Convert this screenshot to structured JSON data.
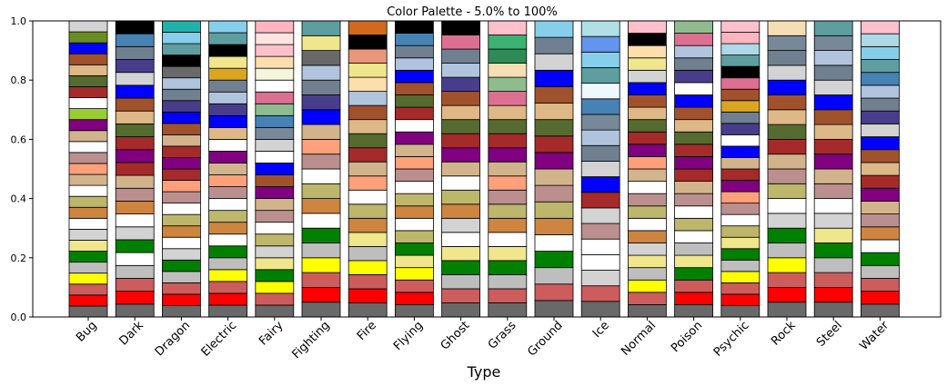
{
  "chart_data": {
    "type": "bar",
    "stacked": true,
    "title": "Color Palette - 5.0% to 100%",
    "xlabel": "Type",
    "ylabel": "",
    "ylim": [
      0,
      1.0
    ],
    "yticks": [
      "0.0",
      "0.2",
      "0.4",
      "0.6",
      "0.8",
      "1.0"
    ],
    "grid": false,
    "legend": "none",
    "categories": [
      "Bug",
      "Dark",
      "Dragon",
      "Electric",
      "Fairy",
      "Fighting",
      "Fire",
      "Flying",
      "Ghost",
      "Grass",
      "Ground",
      "Ice",
      "Normal",
      "Poison",
      "Psychic",
      "Rock",
      "Steel",
      "Water"
    ],
    "stacks": [
      [
        "#696969",
        "#ff0000",
        "#cd5c5c",
        "#ffff00",
        "#bebebe",
        "#008000",
        "#f0e68c",
        "#d3d3d3",
        "#ffffff",
        "#cd853f",
        "#bdb76b",
        "#ffffff",
        "#d2b48c",
        "#ffa07a",
        "#bc8f8f",
        "#ffffff",
        "#d2b48c",
        "#800080",
        "#9acd32",
        "#ffffff",
        "#a52a2a",
        "#556b2f",
        "#deb887",
        "#a0522d",
        "#0000ff",
        "#6b8e23",
        "#d3d3d3"
      ],
      [
        "#696969",
        "#ff0000",
        "#cd5c5c",
        "#bebebe",
        "#ffffff",
        "#008000",
        "#d3d3d3",
        "#ffffff",
        "#cd853f",
        "#bc8f8f",
        "#d2b48c",
        "#a52a2a",
        "#800080",
        "#a52a2a",
        "#556b2f",
        "#deb887",
        "#a0522d",
        "#0000ff",
        "#d3d3d3",
        "#483d8b",
        "#708090",
        "#4682b4",
        "#000000"
      ],
      [
        "#696969",
        "#ff0000",
        "#cd5c5c",
        "#bebebe",
        "#008000",
        "#d3d3d3",
        "#ffffff",
        "#cd853f",
        "#bdb76b",
        "#ffffff",
        "#bc8f8f",
        "#ffa07a",
        "#a52a2a",
        "#800080",
        "#a52a2a",
        "#d2b48c",
        "#a0522d",
        "#0000ff",
        "#483d8b",
        "#708090",
        "#b0c4de",
        "#696969",
        "#000000",
        "#5f9ea0",
        "#87ceeb",
        "#20b2aa"
      ],
      [
        "#696969",
        "#ff0000",
        "#cd5c5c",
        "#ffff00",
        "#bebebe",
        "#008000",
        "#ffffff",
        "#cd853f",
        "#bdb76b",
        "#ffffff",
        "#bc8f8f",
        "#ffa07a",
        "#d2b48c",
        "#800080",
        "#ffffff",
        "#deb887",
        "#0000ff",
        "#483d8b",
        "#b0c4de",
        "#708090",
        "#daa520",
        "#f0e68c",
        "#000000",
        "#5f9ea0",
        "#87ceeb"
      ],
      [
        "#696969",
        "#cd5c5c",
        "#ffff00",
        "#008000",
        "#f0e68c",
        "#d3d3d3",
        "#bdb76b",
        "#ffffff",
        "#bc8f8f",
        "#d2b48c",
        "#800080",
        "#a0522d",
        "#0000ff",
        "#ffffff",
        "#d3d3d3",
        "#778899",
        "#4682b4",
        "#8fbc8f",
        "#db7093",
        "#ffffff",
        "#f5f5dc",
        "#ffdead",
        "#ffc0cb",
        "#ffe4e1",
        "#ffb6c1"
      ],
      [
        "#696969",
        "#ff0000",
        "#cd5c5c",
        "#ffff00",
        "#bebebe",
        "#008000",
        "#ffffff",
        "#cd853f",
        "#bdb76b",
        "#ffffff",
        "#bc8f8f",
        "#ffa07a",
        "#d2b48c",
        "#0000ff",
        "#483d8b",
        "#708090",
        "#b0c4de",
        "#696969",
        "#f0e68c",
        "#5f9ea0"
      ],
      [
        "#696969",
        "#ff0000",
        "#cd5c5c",
        "#ffff00",
        "#bebebe",
        "#f0e68c",
        "#cd853f",
        "#bdb76b",
        "#ffffff",
        "#ffa07a",
        "#d2b48c",
        "#a52a2a",
        "#556b2f",
        "#deb887",
        "#a0522d",
        "#b0c4de",
        "#ffdead",
        "#f0e68c",
        "#e9967a",
        "#000000",
        "#d2691e"
      ],
      [
        "#696969",
        "#ff0000",
        "#cd5c5c",
        "#ffff00",
        "#f0e68c",
        "#008000",
        "#bdb76b",
        "#ffffff",
        "#cd853f",
        "#bdb76b",
        "#ffffff",
        "#bc8f8f",
        "#ffa07a",
        "#d2b48c",
        "#800080",
        "#ffffff",
        "#a52a2a",
        "#556b2f",
        "#a0522d",
        "#0000ff",
        "#b0c4de",
        "#708090",
        "#4682b4",
        "#000000"
      ],
      [
        "#696969",
        "#cd5c5c",
        "#bebebe",
        "#008000",
        "#f0e68c",
        "#ffffff",
        "#d3d3d3",
        "#cd853f",
        "#bdb76b",
        "#ffffff",
        "#d2b48c",
        "#800080",
        "#a52a2a",
        "#556b2f",
        "#deb887",
        "#a0522d",
        "#483d8b",
        "#b0c4de",
        "#708090",
        "#db7093",
        "#000000"
      ],
      [
        "#696969",
        "#cd5c5c",
        "#bebebe",
        "#008000",
        "#f0e68c",
        "#ffffff",
        "#cd853f",
        "#bdb76b",
        "#bc8f8f",
        "#ffa07a",
        "#d2b48c",
        "#800080",
        "#a52a2a",
        "#556b2f",
        "#deb887",
        "#db7093",
        "#8fbc8f",
        "#f5deb3",
        "#2e8b57",
        "#3cb371",
        "#ffc0cb"
      ],
      [
        "#696969",
        "#cd5c5c",
        "#bebebe",
        "#008000",
        "#ffffff",
        "#cd853f",
        "#bdb76b",
        "#bc8f8f",
        "#d2b48c",
        "#800080",
        "#a52a2a",
        "#556b2f",
        "#deb887",
        "#a0522d",
        "#0000ff",
        "#d3d3d3",
        "#708090",
        "#87ceeb"
      ],
      [
        "#696969",
        "#cd5c5c",
        "#d3d3d3",
        "#ffffff",
        "#ffffff",
        "#bc8f8f",
        "#d3d3d3",
        "#a52a2a",
        "#0000ff",
        "#d3d3d3",
        "#708090",
        "#b0c4de",
        "#778899",
        "#4682b4",
        "#f0f8ff",
        "#5f9ea0",
        "#87ceeb",
        "#6495ed",
        "#b0e0e6"
      ],
      [
        "#696969",
        "#cd5c5c",
        "#ffff00",
        "#bebebe",
        "#f0e68c",
        "#d3d3d3",
        "#cd853f",
        "#ffffff",
        "#bdb76b",
        "#bc8f8f",
        "#ffffff",
        "#d2b48c",
        "#ffa07a",
        "#800080",
        "#a52a2a",
        "#556b2f",
        "#deb887",
        "#a0522d",
        "#0000ff",
        "#d3d3d3",
        "#f0e68c",
        "#ffdead",
        "#000000",
        "#ffc0cb"
      ],
      [
        "#696969",
        "#ff0000",
        "#cd5c5c",
        "#008000",
        "#f0e68c",
        "#bebebe",
        "#ffffff",
        "#bdb76b",
        "#ffffff",
        "#bc8f8f",
        "#d2b48c",
        "#a52a2a",
        "#800080",
        "#a52a2a",
        "#556b2f",
        "#deb887",
        "#a0522d",
        "#0000ff",
        "#ffffff",
        "#483d8b",
        "#708090",
        "#b0c4de",
        "#db7093",
        "#8fbc8f"
      ],
      [
        "#696969",
        "#ff0000",
        "#cd5c5c",
        "#ffff00",
        "#bebebe",
        "#008000",
        "#f0e68c",
        "#bdb76b",
        "#ffffff",
        "#bc8f8f",
        "#ffa07a",
        "#800080",
        "#a52a2a",
        "#d2b48c",
        "#0000ff",
        "#ffffff",
        "#483d8b",
        "#708090",
        "#daa520",
        "#a0522d",
        "#db7093",
        "#000000",
        "#5f9ea0",
        "#add8e6",
        "#ffb6c1",
        "#ffc0cb"
      ],
      [
        "#696969",
        "#ff0000",
        "#cd5c5c",
        "#ffff00",
        "#bebebe",
        "#008000",
        "#d3d3d3",
        "#ffffff",
        "#bdb76b",
        "#bc8f8f",
        "#d2b48c",
        "#a52a2a",
        "#556b2f",
        "#deb887",
        "#a0522d",
        "#0000ff",
        "#d3d3d3",
        "#708090",
        "#778899",
        "#f5deb3"
      ],
      [
        "#696969",
        "#ff0000",
        "#cd5c5c",
        "#bebebe",
        "#008000",
        "#f0e68c",
        "#d3d3d3",
        "#ffffff",
        "#bc8f8f",
        "#d2b48c",
        "#800080",
        "#a52a2a",
        "#deb887",
        "#a0522d",
        "#0000ff",
        "#d3d3d3",
        "#708090",
        "#b0c4de",
        "#778899",
        "#5f9ea0"
      ],
      [
        "#696969",
        "#ff0000",
        "#cd5c5c",
        "#bebebe",
        "#008000",
        "#ffffff",
        "#cd853f",
        "#bc8f8f",
        "#d2b48c",
        "#800080",
        "#a52a2a",
        "#deb887",
        "#a0522d",
        "#0000ff",
        "#d3d3d3",
        "#483d8b",
        "#708090",
        "#b0c4de",
        "#4682b4",
        "#5f9ea0",
        "#87ceeb",
        "#add8e6",
        "#ffc0cb"
      ]
    ]
  }
}
